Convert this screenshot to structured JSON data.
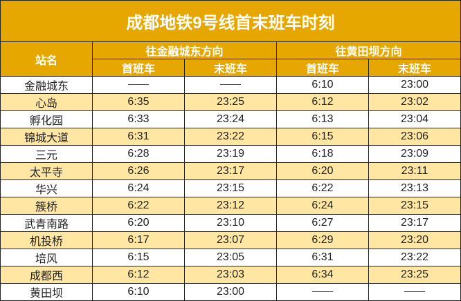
{
  "title": "成都地铁9号线首末班车时刻",
  "header": {
    "station": "站名",
    "direction_1": "往金融城东方向",
    "direction_2": "往黄田坝方向",
    "first_train": "首班车",
    "last_train": "末班车"
  },
  "colors": {
    "header_bg": "#E6A700",
    "alt_row_bg": "#FFE6A3"
  },
  "rows": [
    {
      "station": "金融城东",
      "d1_first": "——",
      "d1_last": "——",
      "d2_first": "6:10",
      "d2_last": "23:00"
    },
    {
      "station": "心岛",
      "d1_first": "6:35",
      "d1_last": "23:25",
      "d2_first": "6:12",
      "d2_last": "23:02"
    },
    {
      "station": "孵化园",
      "d1_first": "6:33",
      "d1_last": "23:24",
      "d2_first": "6:13",
      "d2_last": "23:04"
    },
    {
      "station": "锦城大道",
      "d1_first": "6:31",
      "d1_last": "23:22",
      "d2_first": "6:15",
      "d2_last": "23:06"
    },
    {
      "station": "三元",
      "d1_first": "6:28",
      "d1_last": "23:19",
      "d2_first": "6:18",
      "d2_last": "23:09"
    },
    {
      "station": "太平寺",
      "d1_first": "6:26",
      "d1_last": "23:17",
      "d2_first": "6:20",
      "d2_last": "23:11"
    },
    {
      "station": "华兴",
      "d1_first": "6:24",
      "d1_last": "23:15",
      "d2_first": "6:22",
      "d2_last": "23:13"
    },
    {
      "station": "簇桥",
      "d1_first": "6:22",
      "d1_last": "23:12",
      "d2_first": "6:24",
      "d2_last": "23:15"
    },
    {
      "station": "武青南路",
      "d1_first": "6:20",
      "d1_last": "23:10",
      "d2_first": "6:27",
      "d2_last": "23:17"
    },
    {
      "station": "机投桥",
      "d1_first": "6:17",
      "d1_last": "23:07",
      "d2_first": "6:29",
      "d2_last": "23:20"
    },
    {
      "station": "培风",
      "d1_first": "6:15",
      "d1_last": "23:05",
      "d2_first": "6:31",
      "d2_last": "23:22"
    },
    {
      "station": "成都西",
      "d1_first": "6:12",
      "d1_last": "23:03",
      "d2_first": "6:34",
      "d2_last": "23:25"
    },
    {
      "station": "黄田坝",
      "d1_first": "6:10",
      "d1_last": "23:00",
      "d2_first": "——",
      "d2_last": "——"
    }
  ]
}
